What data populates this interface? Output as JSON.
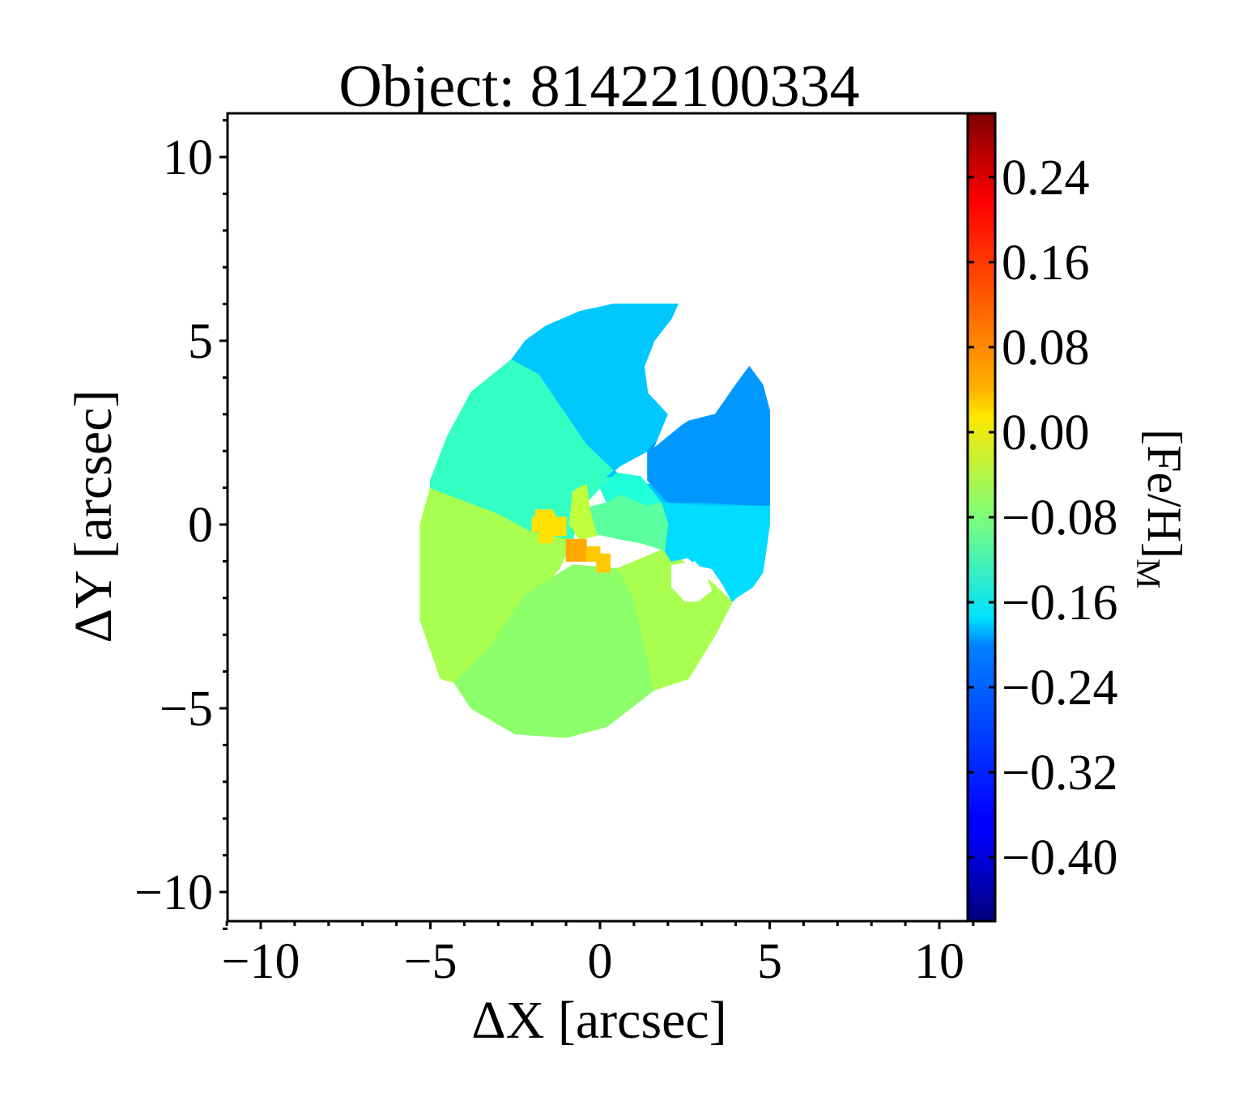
{
  "chart_data": {
    "type": "heatmap",
    "title": "Object: 81422100334",
    "xlabel": "ΔX [arcsec]",
    "ylabel": "ΔY [arcsec]",
    "colorbar_label_main": "[Fe/H]",
    "colorbar_label_sub": "M",
    "xlim": [
      -11,
      11
    ],
    "ylim": [
      -11,
      11
    ],
    "x_ticks": [
      -10,
      -5,
      0,
      5,
      10
    ],
    "x_tick_labels": [
      "−10",
      "−5",
      "0",
      "5",
      "10"
    ],
    "y_ticks": [
      -10,
      -5,
      0,
      5,
      10
    ],
    "y_tick_labels": [
      "−10",
      "−5",
      "0",
      "5",
      "10"
    ],
    "colorbar_range": [
      -0.46,
      0.3
    ],
    "colorbar_ticks": [
      0.24,
      0.16,
      0.08,
      0.0,
      -0.08,
      -0.16,
      -0.24,
      -0.32,
      -0.4
    ],
    "colorbar_tick_labels": [
      "0.24",
      "0.16",
      "0.08",
      "0.00",
      "−0.08",
      "−0.16",
      "−0.24",
      "−0.32",
      "−0.40"
    ],
    "colormap": "jet",
    "grid": false,
    "regions": [
      {
        "name": "outer-south-west",
        "value": -0.02,
        "color": "#a8ff4f",
        "polygon": [
          [
            -5.0,
            1.0
          ],
          [
            -5.3,
            0.0
          ],
          [
            -5.3,
            -2.6
          ],
          [
            -4.7,
            -4.2
          ],
          [
            -4.3,
            -4.3
          ],
          [
            -3.3,
            -3.4
          ],
          [
            -1.2,
            -1.2
          ],
          [
            -0.8,
            -0.4
          ],
          [
            -2.0,
            -0.2
          ],
          [
            -3.0,
            0.3
          ]
        ]
      },
      {
        "name": "outer-south",
        "value": -0.06,
        "color": "#8cff6b",
        "polygon": [
          [
            -4.3,
            -4.3
          ],
          [
            -3.8,
            -5.0
          ],
          [
            -2.5,
            -5.7
          ],
          [
            -1.0,
            -5.8
          ],
          [
            0.2,
            -5.5
          ],
          [
            1.6,
            -4.5
          ],
          [
            1.0,
            -2.0
          ],
          [
            0.5,
            -1.2
          ],
          [
            -0.8,
            -1.1
          ],
          [
            -2.2,
            -1.9
          ],
          [
            -3.3,
            -3.4
          ]
        ]
      },
      {
        "name": "outer-south-east",
        "value": -0.03,
        "color": "#a8ff4f",
        "polygon": [
          [
            0.5,
            -1.2
          ],
          [
            1.8,
            -0.7
          ],
          [
            2.3,
            -0.9
          ],
          [
            3.2,
            -1.5
          ],
          [
            3.9,
            -2.1
          ],
          [
            3.4,
            -3.0
          ],
          [
            2.6,
            -4.2
          ],
          [
            1.6,
            -4.5
          ],
          [
            1.0,
            -2.0
          ]
        ]
      },
      {
        "name": "north-west",
        "value": -0.15,
        "color": "#34ffc3",
        "polygon": [
          [
            -5.0,
            1.0
          ],
          [
            -3.0,
            0.3
          ],
          [
            -2.0,
            -0.2
          ],
          [
            -0.8,
            -0.4
          ],
          [
            -0.6,
            0.4
          ],
          [
            0.0,
            1.0
          ],
          [
            0.5,
            1.4
          ],
          [
            -0.4,
            2.2
          ],
          [
            -1.8,
            4.1
          ],
          [
            -2.6,
            4.5
          ],
          [
            -3.8,
            3.6
          ],
          [
            -4.5,
            2.4
          ],
          [
            -5.0,
            1.2
          ]
        ]
      },
      {
        "name": "north",
        "value": -0.22,
        "color": "#00c8ff",
        "polygon": [
          [
            -2.6,
            4.5
          ],
          [
            -1.8,
            4.1
          ],
          [
            -0.4,
            2.2
          ],
          [
            0.5,
            1.4
          ],
          [
            1.3,
            1.1
          ],
          [
            1.7,
            1.1
          ],
          [
            2.1,
            2.7
          ],
          [
            3.4,
            3.0
          ],
          [
            4.0,
            3.8
          ],
          [
            4.4,
            4.3
          ],
          [
            4.6,
            3.8
          ],
          [
            4.9,
            3.1
          ],
          [
            5.0,
            1.2
          ],
          [
            5.0,
            0.5
          ],
          [
            3.0,
            0.5
          ],
          [
            1.8,
            0.6
          ],
          [
            1.2,
            1.3
          ],
          [
            0.2,
            1.3
          ],
          [
            0.6,
            1.6
          ],
          [
            1.6,
            2.1
          ],
          [
            2.0,
            3.0
          ],
          [
            1.4,
            3.6
          ],
          [
            1.3,
            4.3
          ],
          [
            1.6,
            5.0
          ],
          [
            2.1,
            5.6
          ],
          [
            2.3,
            6.0
          ],
          [
            0.4,
            6.0
          ],
          [
            -0.6,
            5.8
          ],
          [
            -1.6,
            5.4
          ],
          [
            -2.2,
            5.0
          ]
        ]
      },
      {
        "name": "north-east",
        "value": -0.28,
        "color": "#0098ff",
        "polygon": [
          [
            1.4,
            1.2
          ],
          [
            2.0,
            0.6
          ],
          [
            3.0,
            0.6
          ],
          [
            5.0,
            0.5
          ],
          [
            5.0,
            3.1
          ],
          [
            4.8,
            3.8
          ],
          [
            4.4,
            4.3
          ],
          [
            4.0,
            3.8
          ],
          [
            3.4,
            3.0
          ],
          [
            2.1,
            2.7
          ],
          [
            1.4,
            2.0
          ]
        ]
      },
      {
        "name": "east",
        "value": -0.2,
        "color": "#00ddff",
        "polygon": [
          [
            1.8,
            0.6
          ],
          [
            3.0,
            0.5
          ],
          [
            5.0,
            0.5
          ],
          [
            5.0,
            0.0
          ],
          [
            4.8,
            -1.3
          ],
          [
            4.5,
            -1.7
          ],
          [
            4.0,
            -2.0
          ],
          [
            3.9,
            -2.1
          ],
          [
            3.6,
            -1.6
          ],
          [
            3.3,
            -1.2
          ],
          [
            2.8,
            -1.1
          ],
          [
            2.6,
            -0.9
          ],
          [
            2.1,
            -1.0
          ],
          [
            1.9,
            -0.7
          ],
          [
            2.0,
            0.0
          ]
        ]
      },
      {
        "name": "inner-north",
        "value": -0.17,
        "color": "#1fffd8",
        "polygon": [
          [
            0.0,
            1.0
          ],
          [
            0.5,
            1.4
          ],
          [
            1.2,
            1.3
          ],
          [
            1.8,
            0.6
          ],
          [
            1.4,
            0.5
          ],
          [
            0.6,
            0.8
          ],
          [
            0.2,
            0.6
          ]
        ]
      },
      {
        "name": "inner-center",
        "value": -0.12,
        "color": "#5cffa0",
        "polygon": [
          [
            -0.6,
            0.4
          ],
          [
            0.2,
            0.6
          ],
          [
            0.6,
            0.8
          ],
          [
            1.4,
            0.5
          ],
          [
            1.8,
            0.6
          ],
          [
            2.0,
            0.0
          ],
          [
            1.9,
            -0.7
          ],
          [
            1.2,
            -0.5
          ],
          [
            0.6,
            -0.4
          ],
          [
            -0.4,
            -0.2
          ]
        ]
      },
      {
        "name": "inner-west",
        "value": -0.02,
        "color": "#c0ff3c",
        "polygon": [
          [
            -0.8,
            0.9
          ],
          [
            -0.4,
            1.1
          ],
          [
            -0.3,
            0.4
          ],
          [
            -0.1,
            -0.3
          ],
          [
            -0.6,
            -0.4
          ],
          [
            -0.9,
            0.0
          ]
        ]
      },
      {
        "name": "core-yellow",
        "value": 0.04,
        "color": "#ffe000",
        "polygon": [
          [
            -1.9,
            0.4
          ],
          [
            -1.4,
            0.4
          ],
          [
            -1.3,
            0.2
          ],
          [
            -1.0,
            0.2
          ],
          [
            -1.0,
            -0.3
          ],
          [
            -1.4,
            -0.3
          ],
          [
            -1.4,
            -0.5
          ],
          [
            -1.8,
            -0.5
          ],
          [
            -1.8,
            -0.2
          ],
          [
            -2.0,
            -0.2
          ],
          [
            -2.0,
            0.2
          ],
          [
            -1.9,
            0.2
          ]
        ]
      },
      {
        "name": "core-orange",
        "value": 0.12,
        "color": "#ffa800",
        "polygon": [
          [
            -1.0,
            -0.4
          ],
          [
            -0.4,
            -0.4
          ],
          [
            -0.4,
            -1.0
          ],
          [
            -1.0,
            -1.0
          ]
        ]
      },
      {
        "name": "core-yellow-east",
        "value": 0.06,
        "color": "#ffc800",
        "polygon": [
          [
            -0.4,
            -0.6
          ],
          [
            0.0,
            -0.6
          ],
          [
            0.0,
            -0.8
          ],
          [
            0.3,
            -0.8
          ],
          [
            0.3,
            -1.3
          ],
          [
            -0.1,
            -1.3
          ],
          [
            -0.1,
            -1.0
          ],
          [
            -0.4,
            -1.0
          ]
        ]
      }
    ],
    "holes": [
      {
        "name": "gap-north",
        "polygon": [
          [
            1.4,
            3.6
          ],
          [
            2.0,
            3.0
          ],
          [
            1.6,
            2.1
          ],
          [
            2.4,
            2.7
          ],
          [
            3.2,
            3.2
          ],
          [
            2.8,
            3.9
          ],
          [
            2.3,
            4.4
          ],
          [
            1.8,
            4.3
          ]
        ]
      },
      {
        "name": "gap-south-east",
        "polygon": [
          [
            2.1,
            -1.1
          ],
          [
            2.8,
            -1.0
          ],
          [
            3.1,
            -1.3
          ],
          [
            3.3,
            -1.8
          ],
          [
            2.9,
            -2.1
          ],
          [
            2.5,
            -2.1
          ],
          [
            2.1,
            -1.7
          ]
        ]
      }
    ]
  }
}
